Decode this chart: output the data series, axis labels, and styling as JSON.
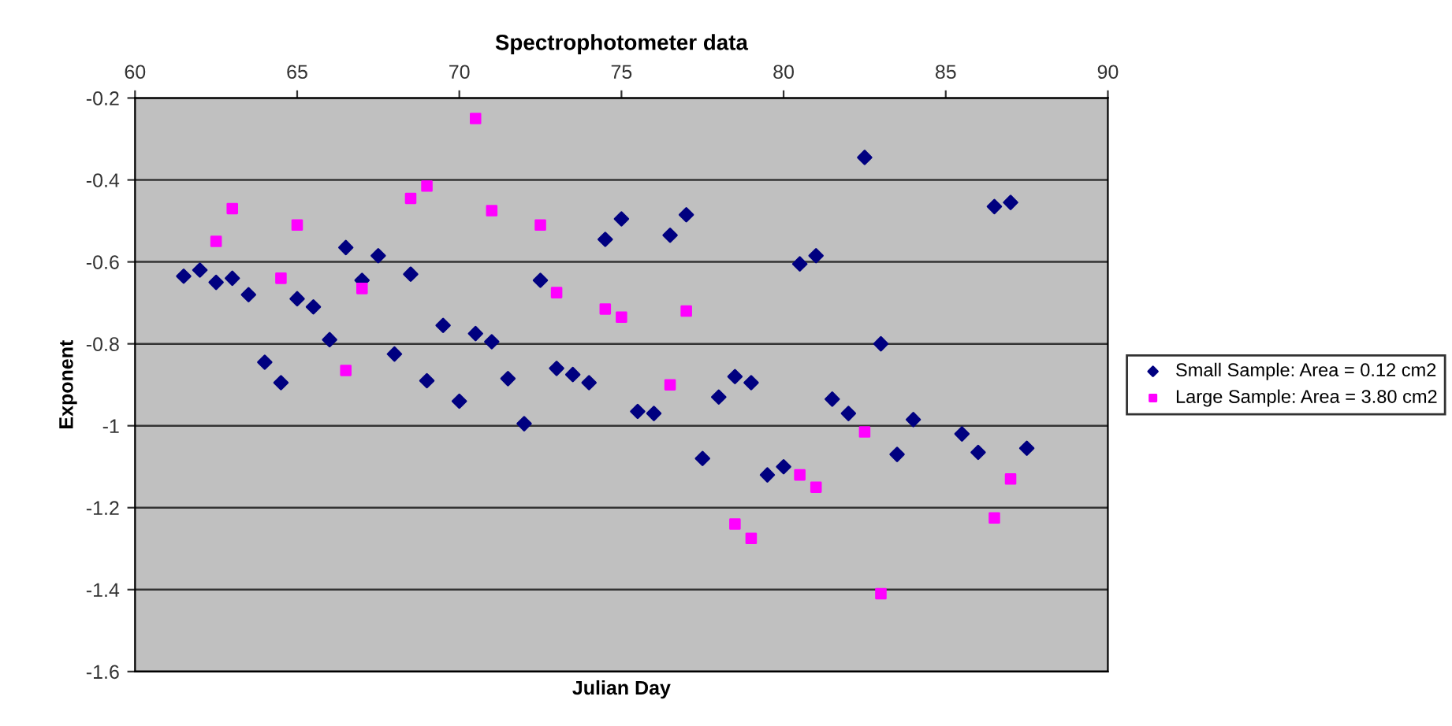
{
  "chart_data": {
    "type": "scatter",
    "title": "Spectrophotometer data",
    "xlabel": "Julian Day",
    "ylabel": "Exponent",
    "xlim": [
      60,
      90
    ],
    "xticks": [
      60,
      65,
      70,
      75,
      80,
      85,
      90
    ],
    "ylim": [
      -1.6,
      -0.2
    ],
    "yticks": [
      -1.6,
      -1.4,
      -1.2,
      -1,
      -0.8,
      -0.6,
      -0.4,
      -0.2
    ],
    "grid": "y",
    "legend": "right",
    "series": [
      {
        "name": "Small Sample: Area = 0.12 cm2",
        "color": "#000080",
        "marker": "diamond",
        "x": [
          61.5,
          62,
          62.5,
          63,
          63.5,
          64,
          64.5,
          65,
          65.5,
          66,
          66.5,
          67,
          67.5,
          68,
          68.5,
          69,
          69.5,
          70,
          70.5,
          71,
          71.5,
          72,
          72.5,
          73,
          73.5,
          74,
          74.5,
          75,
          75.5,
          76,
          76.5,
          77,
          77.5,
          78,
          78.5,
          79,
          79.5,
          80,
          80.5,
          81,
          81.5,
          82,
          82.5,
          83,
          83.5,
          84,
          85.5,
          86,
          86.5,
          87,
          87.5
        ],
        "values": [
          -0.635,
          -0.62,
          -0.65,
          -0.64,
          -0.68,
          -0.845,
          -0.895,
          -0.69,
          -0.71,
          -0.79,
          -0.565,
          -0.645,
          -0.585,
          -0.825,
          -0.63,
          -0.89,
          -0.755,
          -0.94,
          -0.775,
          -0.795,
          -0.885,
          -0.995,
          -0.645,
          -0.86,
          -0.875,
          -0.895,
          -0.545,
          -0.495,
          -0.965,
          -0.97,
          -0.535,
          -0.485,
          -1.08,
          -0.93,
          -0.88,
          -0.895,
          -1.12,
          -1.1,
          -0.605,
          -0.585,
          -0.935,
          -0.97,
          -0.345,
          -0.8,
          -1.07,
          -0.985,
          -1.02,
          -1.065,
          -0.465,
          -0.455,
          -1.055
        ]
      },
      {
        "name": "Large Sample: Area = 3.80 cm2",
        "color": "#ff00ff",
        "marker": "square",
        "x": [
          62.5,
          63,
          64.5,
          65,
          66.5,
          67,
          68.5,
          69,
          70.5,
          71,
          72.5,
          73,
          74.5,
          75,
          76.5,
          77,
          78.5,
          79,
          80.5,
          81,
          82.5,
          83,
          86.5,
          87
        ],
        "values": [
          -0.55,
          -0.47,
          -0.64,
          -0.51,
          -0.865,
          -0.665,
          -0.445,
          -0.415,
          -0.25,
          -0.475,
          -0.51,
          -0.675,
          -0.715,
          -0.735,
          -0.9,
          -0.72,
          -1.24,
          -1.275,
          -1.12,
          -1.15,
          -1.015,
          -1.41,
          -1.225,
          -1.13
        ]
      }
    ]
  }
}
